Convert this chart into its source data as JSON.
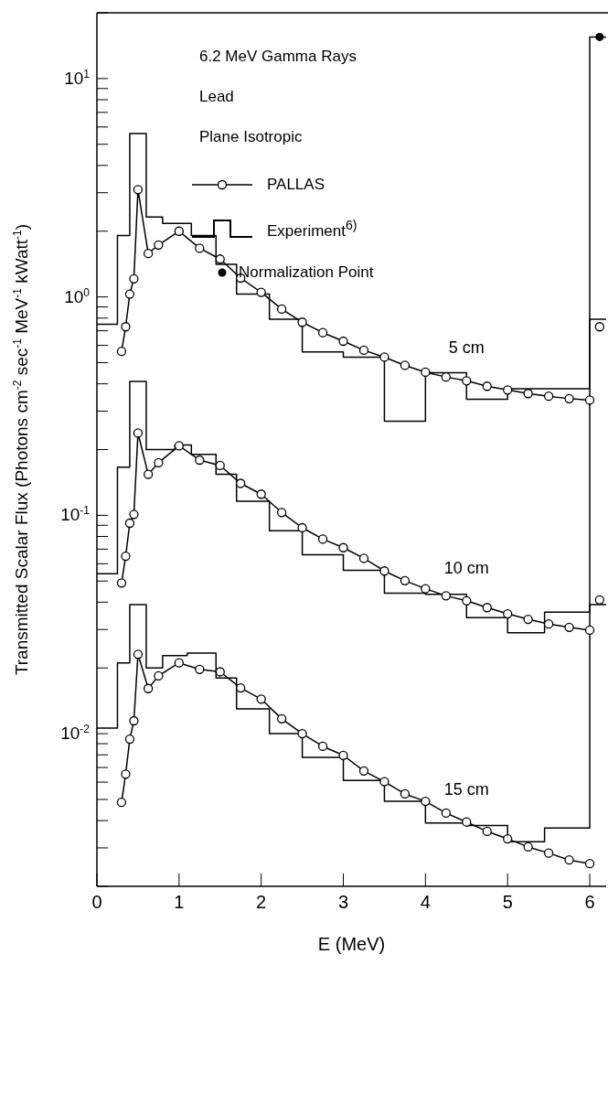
{
  "chart_data": {
    "type": "line",
    "title": "6.2 MeV Gamma Rays",
    "xlabel": "E (MeV)",
    "ylabel": "Transmitted Scalar Flux (Photons cm$^{-2}$ sec$^{-1}$ MeV$^{-1}$ kWatt$^{-1}$)",
    "log": "y",
    "grid": false,
    "legend": "top",
    "xlim": [
      0,
      6.2
    ],
    "xticks": [
      0,
      1,
      2,
      3,
      4,
      5,
      6
    ],
    "ylim": [
      0.002,
      20
    ],
    "yticks": [
      {
        "value": 0.002,
        "label": null
      },
      {
        "value": 0.003,
        "label": null
      },
      {
        "value": 0.004,
        "label": null
      },
      {
        "value": 0.005,
        "label": null
      },
      {
        "value": 0.006,
        "label": null
      },
      {
        "value": 0.007,
        "label": null
      },
      {
        "value": 0.008,
        "label": null
      },
      {
        "value": 0.009,
        "label": null
      },
      {
        "value": 0.01,
        "label": "10$^{-2}$"
      },
      {
        "value": 0.02,
        "label": null
      },
      {
        "value": 0.03,
        "label": null
      },
      {
        "value": 0.04,
        "label": null
      },
      {
        "value": 0.05,
        "label": null
      },
      {
        "value": 0.06,
        "label": null
      },
      {
        "value": 0.07,
        "label": null
      },
      {
        "value": 0.08,
        "label": null
      },
      {
        "value": 0.09,
        "label": null
      },
      {
        "value": 0.1,
        "label": "10$^{-1}$"
      },
      {
        "value": 0.2,
        "label": null
      },
      {
        "value": 0.3,
        "label": null
      },
      {
        "value": 0.4,
        "label": null
      },
      {
        "value": 0.5,
        "label": null
      },
      {
        "value": 0.6,
        "label": null
      },
      {
        "value": 0.7,
        "label": null
      },
      {
        "value": 0.8,
        "label": null
      },
      {
        "value": 0.9,
        "label": null
      },
      {
        "value": 1,
        "label": "10$^{0}$"
      },
      {
        "value": 2,
        "label": null
      },
      {
        "value": 3,
        "label": null
      },
      {
        "value": 4,
        "label": null
      },
      {
        "value": 5,
        "label": null
      },
      {
        "value": 6,
        "label": null
      },
      {
        "value": 7,
        "label": null
      },
      {
        "value": 8,
        "label": null
      },
      {
        "value": 9,
        "label": null
      },
      {
        "value": 10,
        "label": "10$^{1}$"
      },
      {
        "value": 20,
        "label": null
      }
    ],
    "annotations": [
      "Lead",
      "Plane Isotropic",
      "5 cm",
      "10 cm",
      "15 cm"
    ],
    "series": [
      {
        "name": "PALLAS",
        "color": "#000000",
        "marker": "circle",
        "x": [
          0.3,
          0.35,
          0.4,
          0.45,
          0.5,
          0.625,
          0.75,
          1.0,
          1.25,
          1.5,
          1.75,
          2.0,
          2.25,
          2.5,
          2.75,
          3.0,
          3.25,
          3.5,
          3.75,
          4.0,
          4.25,
          4.5,
          4.75,
          5.0,
          5.25,
          5.5,
          5.75,
          6.0
        ],
        "values": [
          0.563,
          0.73,
          1.03,
          1.21,
          3.1,
          1.58,
          1.73,
          2.0,
          1.67,
          1.49,
          1.22,
          1.05,
          0.88,
          0.766,
          0.686,
          0.627,
          0.57,
          0.53,
          0.486,
          0.452,
          0.43,
          0.413,
          0.39,
          0.375,
          0.361,
          0.351,
          0.342,
          0.337
        ]
      },
      {
        "color": "#000000",
        "marker": "circle",
        "x": [
          0.3,
          0.35,
          0.4,
          0.45,
          0.5,
          0.625,
          0.75,
          1.0,
          1.25,
          1.5,
          1.75,
          2.0,
          2.25,
          2.5,
          2.75,
          3.0,
          3.25,
          3.5,
          3.75,
          4.0,
          4.25,
          4.5,
          4.75,
          5.0,
          5.25,
          5.5,
          5.75,
          6.0
        ],
        "values": [
          0.049,
          0.065,
          0.092,
          0.101,
          0.238,
          0.154,
          0.174,
          0.208,
          0.179,
          0.169,
          0.14,
          0.125,
          0.103,
          0.0877,
          0.0778,
          0.0711,
          0.0635,
          0.0556,
          0.0502,
          0.0461,
          0.0428,
          0.0406,
          0.0378,
          0.0354,
          0.0334,
          0.0318,
          0.0307,
          0.0298
        ]
      },
      {
        "color": "#000000",
        "marker": "circle",
        "x": [
          0.3,
          0.35,
          0.4,
          0.45,
          0.5,
          0.625,
          0.75,
          1.0,
          1.25,
          1.5,
          1.75,
          2.0,
          2.25,
          2.5,
          2.75,
          3.0,
          3.25,
          3.5,
          3.75,
          4.0,
          4.25,
          4.5,
          4.75,
          5.0,
          5.25,
          5.5,
          5.75,
          6.0
        ],
        "values": [
          0.00485,
          0.00653,
          0.00944,
          0.01146,
          0.0231,
          0.0161,
          0.0184,
          0.0211,
          0.0197,
          0.0192,
          0.0162,
          0.0144,
          0.0117,
          0.01,
          0.00875,
          0.00796,
          0.00675,
          0.00603,
          0.0053,
          0.0049,
          0.00433,
          0.00394,
          0.00357,
          0.0033,
          0.00303,
          0.00284,
          0.00264,
          0.00254
        ]
      },
      {
        "color": "#000000",
        "marker": "circle",
        "x": [
          6.12
        ],
        "values": [
          0.73
        ]
      },
      {
        "color": "#000000",
        "marker": "circle",
        "x": [
          6.12
        ],
        "values": [
          0.041
        ]
      },
      {
        "type": "step",
        "name": "Experiment$^{6)}$",
        "color": "#000000",
        "marker": "none",
        "x": [
          0,
          0.25,
          0.4,
          0.6,
          0.8,
          1.15,
          1.45,
          1.7,
          2.1,
          2.5,
          3.0,
          3.5,
          4.0,
          4.5,
          5.0,
          6.0,
          6.2
        ],
        "values": [
          0.75,
          1.91,
          5.6,
          2.32,
          2.17,
          1.91,
          1.41,
          1.03,
          0.79,
          0.56,
          0.53,
          0.27,
          0.45,
          0.34,
          0.38,
          15.5,
          15.5
        ]
      },
      {
        "type": "step",
        "color": "#000000",
        "marker": "none",
        "x": [
          0,
          0.25,
          0.4,
          0.6,
          0.95,
          1.15,
          1.45,
          1.7,
          2.1,
          2.5,
          3.0,
          3.5,
          4.0,
          4.5,
          5.0,
          5.45,
          6.0,
          6.2
        ],
        "values": [
          0.054,
          0.166,
          0.41,
          0.2,
          0.21,
          0.19,
          0.154,
          0.116,
          0.085,
          0.066,
          0.056,
          0.044,
          0.0435,
          0.034,
          0.029,
          0.036,
          0.79,
          0.79
        ]
      },
      {
        "type": "step",
        "color": "#000000",
        "marker": "none",
        "x": [
          0,
          0.25,
          0.4,
          0.6,
          0.8,
          1.1,
          1.45,
          1.7,
          2.1,
          2.5,
          3.0,
          3.5,
          4.0,
          4.5,
          5.0,
          5.45,
          6.0,
          6.2
        ],
        "values": [
          0.0106,
          0.0211,
          0.039,
          0.02,
          0.0228,
          0.0234,
          0.018,
          0.013,
          0.01,
          0.0078,
          0.0061,
          0.0049,
          0.0039,
          0.0038,
          0.0032,
          0.0037,
          0.039,
          0.039
        ]
      },
      {
        "type": "scatter",
        "name": "Normalization Point",
        "color": "#000000",
        "marker": "circle",
        "x": [
          6.12
        ],
        "values": [
          15.5
        ]
      }
    ]
  }
}
